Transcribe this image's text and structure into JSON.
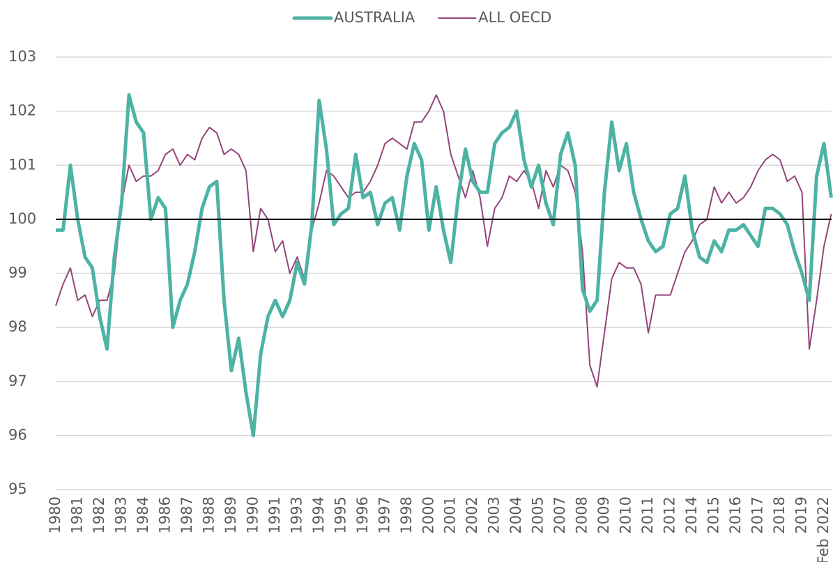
{
  "chart_data": {
    "type": "line",
    "categories": [
      "1980",
      null,
      null,
      "1981",
      null,
      null,
      "1982",
      null,
      null,
      "1983",
      null,
      null,
      "1984",
      null,
      null,
      "1986",
      null,
      null,
      "1987",
      null,
      null,
      "1988",
      null,
      null,
      "1989",
      null,
      null,
      "1990",
      null,
      null,
      "1991",
      null,
      null,
      "1993",
      null,
      null,
      "1994",
      null,
      null,
      "1995",
      null,
      null,
      "1996",
      null,
      null,
      "1997",
      null,
      null,
      "1998",
      null,
      null,
      "2000",
      null,
      null,
      "2001",
      null,
      null,
      "2002",
      null,
      null,
      "2003",
      null,
      null,
      "2004",
      null,
      null,
      "2005",
      null,
      null,
      "2007",
      null,
      null,
      "2008",
      null,
      null,
      "2009",
      null,
      null,
      "2010",
      null,
      null,
      "2011",
      null,
      null,
      "2012",
      null,
      null,
      "2014",
      null,
      null,
      "2015",
      null,
      null,
      "2016",
      null,
      null,
      "2017",
      null,
      null,
      "2018",
      null,
      null,
      "2019",
      null,
      null,
      "Feb 2022",
      null
    ],
    "series": [
      {
        "name": "AUSTRALIA",
        "color": "#4db3a4",
        "width": 5,
        "values": [
          99.8,
          99.8,
          101.0,
          100.0,
          99.3,
          99.1,
          98.2,
          97.6,
          99.3,
          100.3,
          102.3,
          101.8,
          101.6,
          100.0,
          100.4,
          100.2,
          98.0,
          98.5,
          98.8,
          99.4,
          100.2,
          100.6,
          100.7,
          98.5,
          97.2,
          97.8,
          96.8,
          96.0,
          97.5,
          98.2,
          98.5,
          98.2,
          98.5,
          99.2,
          98.8,
          99.9,
          102.2,
          101.3,
          99.9,
          100.1,
          100.2,
          101.2,
          100.4,
          100.5,
          99.9,
          100.3,
          100.4,
          99.8,
          100.8,
          101.4,
          101.1,
          99.8,
          100.6,
          99.8,
          99.2,
          100.4,
          101.3,
          100.7,
          100.5,
          100.5,
          101.4,
          101.6,
          101.7,
          102.0,
          101.1,
          100.6,
          101.0,
          100.3,
          99.9,
          101.2,
          101.6,
          101.0,
          98.7,
          98.3,
          98.5,
          100.5,
          101.8,
          100.9,
          101.4,
          100.5,
          100.0,
          99.6,
          99.4,
          99.5,
          100.1,
          100.2,
          100.8,
          99.8,
          99.3,
          99.2,
          99.6,
          99.4,
          99.8,
          99.8,
          99.9,
          99.7,
          99.5,
          100.2,
          100.2,
          100.1,
          99.9,
          99.4,
          99.0,
          98.5,
          100.8,
          101.4,
          100.4
        ]
      },
      {
        "name": "ALL OECD",
        "color": "#93457a",
        "width": 2,
        "values": [
          98.4,
          98.8,
          99.1,
          98.5,
          98.6,
          98.2,
          98.5,
          98.5,
          99.0,
          100.3,
          101.0,
          100.7,
          100.8,
          100.8,
          100.9,
          101.2,
          101.3,
          101.0,
          101.2,
          101.1,
          101.5,
          101.7,
          101.6,
          101.2,
          101.3,
          101.2,
          100.9,
          99.4,
          100.2,
          100.0,
          99.4,
          99.6,
          99.0,
          99.3,
          98.9,
          99.8,
          100.3,
          100.9,
          100.8,
          100.6,
          100.4,
          100.5,
          100.5,
          100.7,
          101.0,
          101.4,
          101.5,
          101.4,
          101.3,
          101.8,
          101.8,
          102.0,
          102.3,
          102.0,
          101.2,
          100.8,
          100.4,
          100.9,
          100.4,
          99.5,
          100.2,
          100.4,
          100.8,
          100.7,
          100.9,
          100.7,
          100.2,
          100.9,
          100.6,
          101.0,
          100.9,
          100.5,
          99.4,
          97.3,
          96.9,
          97.9,
          98.9,
          99.2,
          99.1,
          99.1,
          98.8,
          97.9,
          98.6,
          98.6,
          98.6,
          99.0,
          99.4,
          99.6,
          99.9,
          100.0,
          100.6,
          100.3,
          100.5,
          100.3,
          100.4,
          100.6,
          100.9,
          101.1,
          101.2,
          101.1,
          100.7,
          100.8,
          100.5,
          97.6,
          98.5,
          99.5,
          100.1
        ]
      }
    ],
    "ylim": [
      95,
      103
    ],
    "yticks": [
      95,
      96,
      97,
      98,
      99,
      100,
      101,
      102,
      103
    ],
    "grid": true,
    "reference_line": 100,
    "legend": "top"
  }
}
